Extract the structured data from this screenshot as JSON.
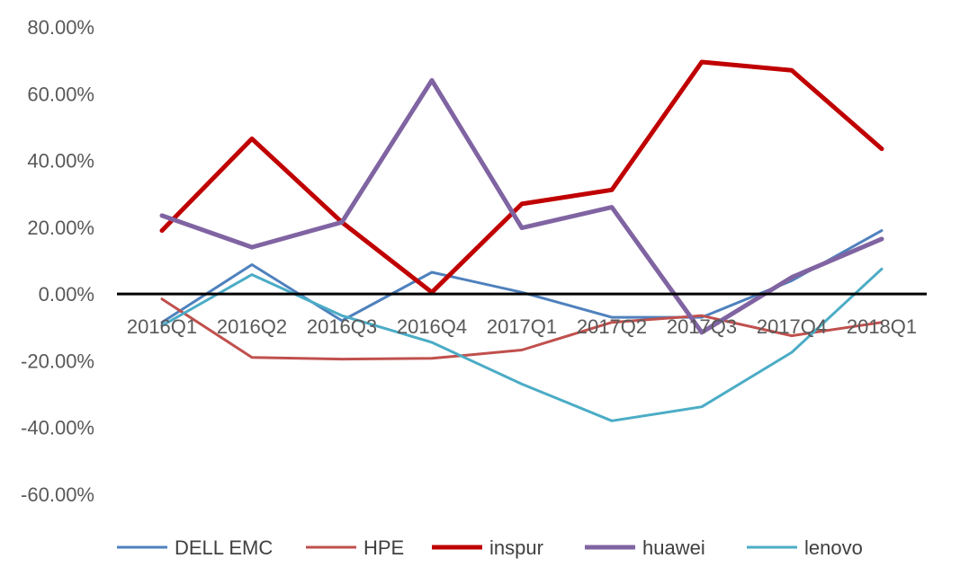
{
  "chart_data": {
    "type": "line",
    "title": "",
    "xlabel": "",
    "ylabel": "",
    "categories": [
      "2016Q1",
      "2016Q2",
      "2016Q3",
      "2016Q4",
      "2017Q1",
      "2017Q2",
      "2017Q3",
      "2017Q4",
      "2018Q1"
    ],
    "ylim": [
      -60,
      80
    ],
    "yticks": [
      80,
      60,
      40,
      20,
      0,
      -20,
      -40,
      -60
    ],
    "ytick_labels": [
      "80.00%",
      "60.00%",
      "40.00%",
      "20.00%",
      "0.00%",
      "-20.00%",
      "-40.00%",
      "-60.00%"
    ],
    "grid": false,
    "legend_position": "bottom",
    "series": [
      {
        "name": "DELL EMC",
        "color": "#4F81BD",
        "width": "normal",
        "values": [
          -8.5,
          8.8,
          -8.0,
          6.5,
          0.5,
          -7.0,
          -7.0,
          4.0,
          19.0
        ]
      },
      {
        "name": "HPE",
        "color": "#C0504D",
        "width": "normal",
        "values": [
          -1.5,
          -19.0,
          -19.5,
          -19.3,
          -16.8,
          -8.5,
          -6.5,
          -12.5,
          -8.5
        ]
      },
      {
        "name": "inspur",
        "color": "#C00000",
        "width": "thick",
        "values": [
          19.0,
          46.5,
          21.5,
          0.5,
          27.0,
          31.2,
          69.5,
          67.0,
          43.5
        ]
      },
      {
        "name": "huawei",
        "color": "#8064A2",
        "width": "thick",
        "values": [
          23.5,
          14.0,
          21.5,
          64.0,
          19.8,
          26.0,
          -11.5,
          5.0,
          16.5
        ]
      },
      {
        "name": "lenovo",
        "color": "#4BACC6",
        "width": "normal",
        "values": [
          -9.5,
          5.8,
          -6.5,
          -14.5,
          -27.0,
          -38.0,
          -33.8,
          -17.5,
          7.5
        ]
      }
    ]
  }
}
